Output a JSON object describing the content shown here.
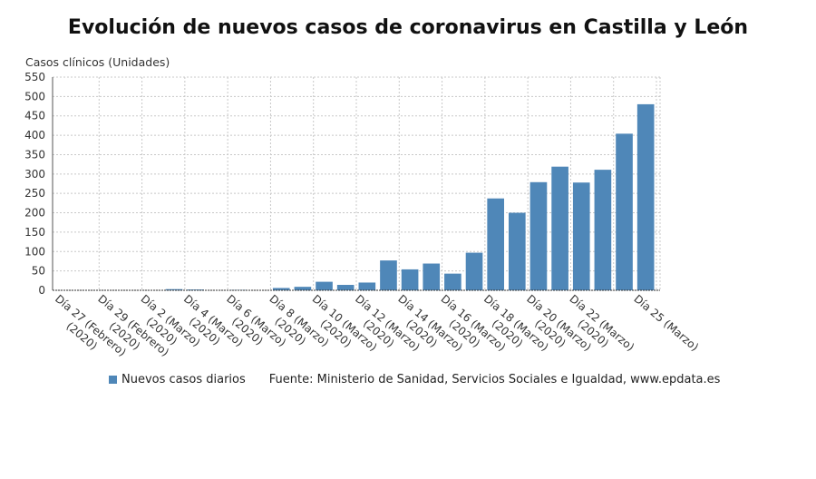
{
  "chart_data": {
    "type": "bar",
    "title": "Evolución de nuevos casos de coronavirus en Castilla y León",
    "ylabel": "Casos clínicos (Unidades)",
    "xlabel": "",
    "ylim": [
      0,
      550
    ],
    "yticks": [
      0,
      50,
      100,
      150,
      200,
      250,
      300,
      350,
      400,
      450,
      500,
      550
    ],
    "grid": true,
    "legend_position": "bottom",
    "bar_color": "#4f87b8",
    "categories": [
      "27 Feb",
      "28 Feb",
      "29 Feb",
      "1 Mar",
      "2 Mar",
      "3 Mar",
      "4 Mar",
      "5 Mar",
      "6 Mar",
      "7 Mar",
      "8 Mar",
      "9 Mar",
      "10 Mar",
      "11 Mar",
      "12 Mar",
      "13 Mar",
      "14 Mar",
      "15 Mar",
      "16 Mar",
      "17 Mar",
      "18 Mar",
      "19 Mar",
      "20 Mar",
      "21 Mar",
      "22 Mar",
      "23 Mar",
      "24 Mar",
      "25 Mar"
    ],
    "tick_labels": [
      {
        "index": 0,
        "lines": [
          "Día 27 (Febrero)",
          "(2020)"
        ]
      },
      {
        "index": 2,
        "lines": [
          "Día 29 (Febrero)",
          "(2020)"
        ]
      },
      {
        "index": 4,
        "lines": [
          "Día 2 (Marzo)",
          "(2020)"
        ]
      },
      {
        "index": 6,
        "lines": [
          "Día 4 (Marzo)",
          "(2020)"
        ]
      },
      {
        "index": 8,
        "lines": [
          "Día 6 (Marzo)",
          "(2020)"
        ]
      },
      {
        "index": 10,
        "lines": [
          "Día 8 (Marzo)",
          "(2020)"
        ]
      },
      {
        "index": 12,
        "lines": [
          "Día 10 (Marzo)",
          "(2020)"
        ]
      },
      {
        "index": 14,
        "lines": [
          "Día 12 (Marzo)",
          "(2020)"
        ]
      },
      {
        "index": 16,
        "lines": [
          "Día 14 (Marzo)",
          "(2020)"
        ]
      },
      {
        "index": 18,
        "lines": [
          "Día 16 (Marzo)",
          "(2020)"
        ]
      },
      {
        "index": 20,
        "lines": [
          "Día 18 (Marzo)",
          "(2020)"
        ]
      },
      {
        "index": 22,
        "lines": [
          "Día 20 (Marzo)",
          "(2020)"
        ]
      },
      {
        "index": 24,
        "lines": [
          "Día 22 (Marzo)",
          "(2020)"
        ]
      },
      {
        "index": 27,
        "lines": [
          "Día 25 (Marzo)"
        ]
      }
    ],
    "series": [
      {
        "name": "Nuevos casos diarios",
        "values": [
          0,
          0,
          0,
          0,
          0,
          3,
          2,
          0,
          1,
          0,
          6,
          9,
          22,
          14,
          20,
          77,
          54,
          69,
          43,
          97,
          237,
          200,
          279,
          319,
          278,
          311,
          404,
          480
        ]
      }
    ]
  },
  "legend": {
    "series_label": "Nuevos casos diarios"
  },
  "source": "Fuente: Ministerio de Sanidad, Servicios Sociales e Igualdad, www.epdata.es"
}
